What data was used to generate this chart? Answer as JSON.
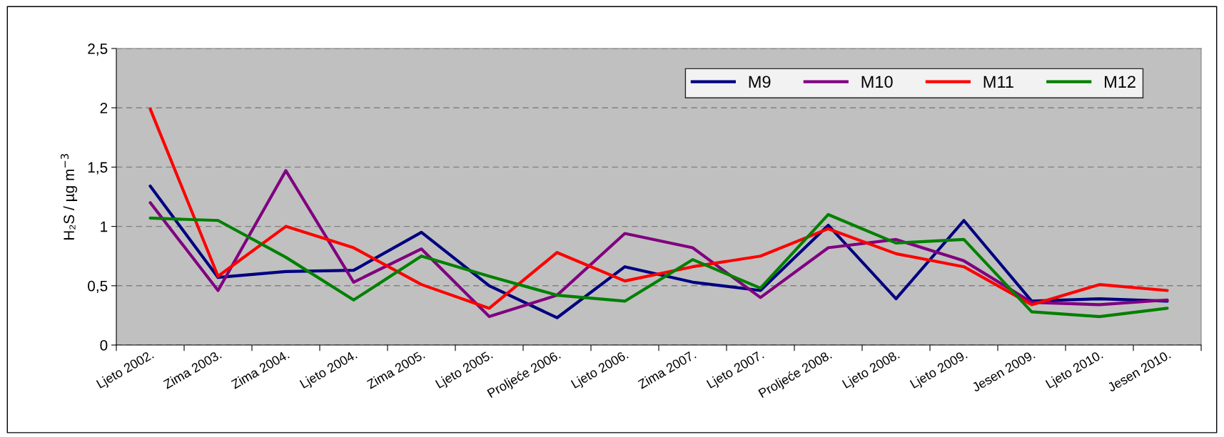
{
  "chart_data": {
    "type": "line",
    "ylabel": "H₂S / µg m$^{−3}$",
    "categories": [
      "Ljeto 2002.",
      "Zima 2003.",
      "Zima 2004.",
      "Ljeto 2004.",
      "Zima 2005.",
      "Ljeto 2005.",
      "Proljeće 2006.",
      "Ljeto 2006.",
      "Zima 2007.",
      "Ljeto 2007.",
      "Proljeće 2008.",
      "Ljeto 2008.",
      "Ljeto 2009.",
      "Jesen 2009.",
      "Ljeto 2010.",
      "Jesen 2010."
    ],
    "series": [
      {
        "name": "M9",
        "color": "#000080",
        "values": [
          1.34,
          0.57,
          0.62,
          0.63,
          0.95,
          0.5,
          0.23,
          0.66,
          0.53,
          0.46,
          1.01,
          0.39,
          1.05,
          0.37,
          0.39,
          0.37
        ]
      },
      {
        "name": "M10",
        "color": "#800080",
        "values": [
          1.2,
          0.46,
          1.47,
          0.53,
          0.81,
          0.24,
          0.42,
          0.94,
          0.82,
          0.4,
          0.82,
          0.89,
          0.71,
          0.36,
          0.34,
          0.38
        ]
      },
      {
        "name": "M11",
        "color": "#ff0000",
        "values": [
          1.99,
          0.58,
          1.0,
          0.82,
          0.51,
          0.31,
          0.78,
          0.54,
          0.66,
          0.75,
          0.98,
          0.77,
          0.66,
          0.34,
          0.51,
          0.46
        ]
      },
      {
        "name": "M12",
        "color": "#008000",
        "values": [
          1.07,
          1.05,
          0.74,
          0.38,
          0.75,
          0.58,
          0.42,
          0.37,
          0.72,
          0.48,
          1.1,
          0.86,
          0.89,
          0.28,
          0.24,
          0.31
        ]
      }
    ],
    "ylim": [
      0,
      2.5
    ],
    "yticks": [
      0,
      {
        "value": 0.5,
        "label": "0,5"
      },
      1,
      {
        "value": 1.5,
        "label": "1,5"
      },
      2,
      {
        "value": 2.5,
        "label": "2,5"
      }
    ],
    "grid": "y",
    "legend": "top right",
    "marker": "none",
    "line_style": "solid"
  }
}
